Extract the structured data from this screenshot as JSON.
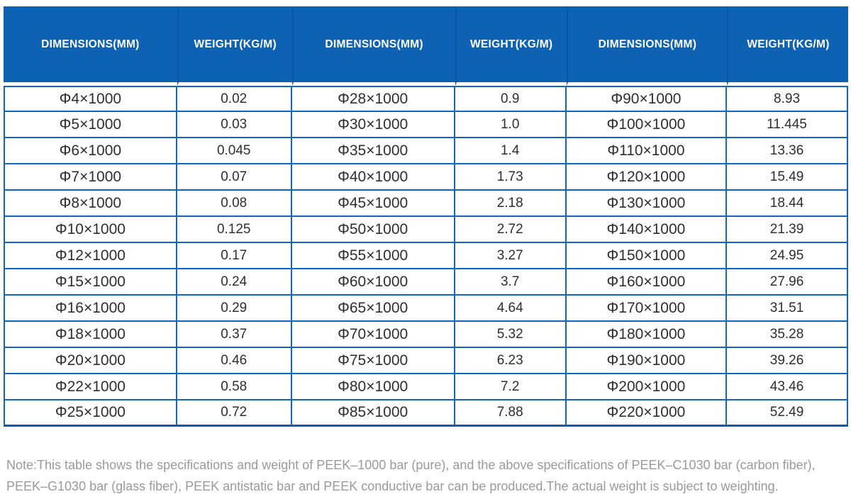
{
  "theme": {
    "page_bg": "#ffffff",
    "header_bg": "#0e62b4",
    "header_divider": "#0a56a6",
    "header_text": "#ffffff",
    "grid_border": "#1166c0",
    "table_bottom_border": "#0c5cb0",
    "cell_text": "#2e2e2e",
    "note_text": "#9a9a9a"
  },
  "table": {
    "headers": [
      "DIMENSIONS(MM)",
      "WEIGHT(KG/M)",
      "DIMENSIONS(MM)",
      "WEIGHT(KG/M)",
      "DIMENSIONS(MM)",
      "WEIGHT(KG/M)"
    ],
    "rows": [
      [
        "Φ4×1000",
        "0.02",
        "Φ28×1000",
        "0.9",
        "Φ90×1000",
        "8.93"
      ],
      [
        "Φ5×1000",
        "0.03",
        "Φ30×1000",
        "1.0",
        "Φ100×1000",
        "11.445"
      ],
      [
        "Φ6×1000",
        "0.045",
        "Φ35×1000",
        "1.4",
        "Φ110×1000",
        "13.36"
      ],
      [
        "Φ7×1000",
        "0.07",
        "Φ40×1000",
        "1.73",
        "Φ120×1000",
        "15.49"
      ],
      [
        "Φ8×1000",
        "0.08",
        "Φ45×1000",
        "2.18",
        "Φ130×1000",
        "18.44"
      ],
      [
        "Φ10×1000",
        "0.125",
        "Φ50×1000",
        "2.72",
        "Φ140×1000",
        "21.39"
      ],
      [
        "Φ12×1000",
        "0.17",
        "Φ55×1000",
        "3.27",
        "Φ150×1000",
        "24.95"
      ],
      [
        "Φ15×1000",
        "0.24",
        "Φ60×1000",
        "3.7",
        "Φ160×1000",
        "27.96"
      ],
      [
        "Φ16×1000",
        "0.29",
        "Φ65×1000",
        "4.64",
        "Φ170×1000",
        "31.51"
      ],
      [
        "Φ18×1000",
        "0.37",
        "Φ70×1000",
        "5.32",
        "Φ180×1000",
        "35.28"
      ],
      [
        "Φ20×1000",
        "0.46",
        "Φ75×1000",
        "6.23",
        "Φ190×1000",
        "39.26"
      ],
      [
        "Φ22×1000",
        "0.58",
        "Φ80×1000",
        "7.2",
        "Φ200×1000",
        "43.46"
      ],
      [
        "Φ25×1000",
        "0.72",
        "Φ85×1000",
        "7.88",
        "Φ220×1000",
        "52.49"
      ]
    ]
  },
  "note": {
    "lines": [
      "Note:This table shows the specifications and weight of PEEK–1000 bar (pure), and the above specifications of PEEK–C1030 bar (carbon fiber),",
      "PEEK–G1030 bar (glass fiber), PEEK antistatic bar and PEEK conductive bar can be produced.The actual weight is subject to weighting."
    ]
  }
}
